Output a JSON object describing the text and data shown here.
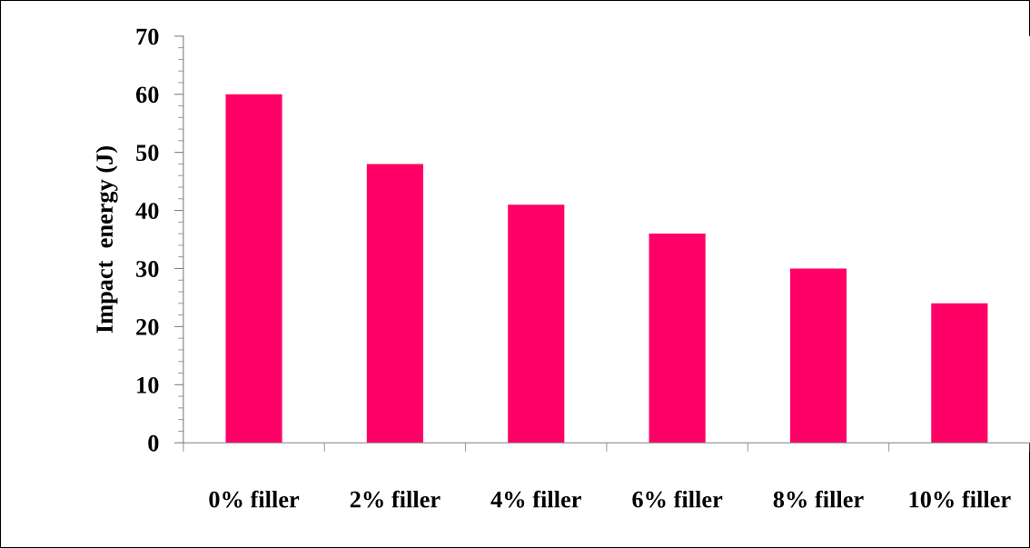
{
  "chart_data": {
    "type": "bar",
    "ylabel": "Impact  energy (J)",
    "categories": [
      "0% filler",
      "2% filler",
      "4% filler",
      "6% filler",
      "8% filler",
      "10% filler"
    ],
    "values": [
      60,
      48,
      41,
      36,
      30,
      24
    ],
    "color": "#ff0066",
    "ylim": [
      0,
      70
    ],
    "yticks": [
      0,
      10,
      20,
      30,
      40,
      50,
      60,
      70
    ],
    "grid": false,
    "legend": false
  }
}
